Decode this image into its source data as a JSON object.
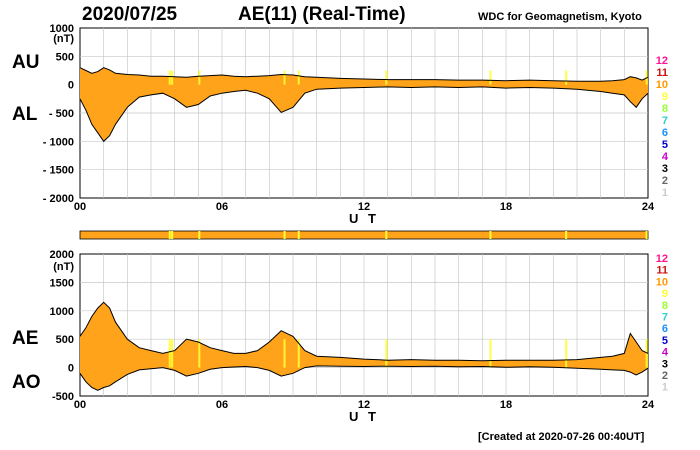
{
  "header": {
    "date": "2020/07/25",
    "title": "AE(11) (Real-Time)",
    "source": "WDC for Geomagnetism, Kyoto",
    "created": "[Created at 2020-07-26 00:40UT]"
  },
  "legend": {
    "entries": [
      "12",
      "11",
      "10",
      "9",
      "8",
      "7",
      "6",
      "5",
      "4",
      "3",
      "2",
      "1"
    ],
    "colors": [
      "#ff1493",
      "#cc1111",
      "#ff9900",
      "#ffff33",
      "#99ff33",
      "#33cccc",
      "#1e90ff",
      "#0000cc",
      "#cc00cc",
      "#000000",
      "#666666",
      "#cccccc"
    ]
  },
  "colors": {
    "fill": "#ffa31a",
    "line": "#000000",
    "highlight": "#ffff33",
    "grid": "#c8c8c8"
  },
  "chart_data": [
    {
      "type": "area",
      "series_labels": [
        "AU",
        "AL"
      ],
      "unit": "(nT)",
      "xlabel": "U T",
      "xticks": [
        0,
        6,
        12,
        18,
        24
      ],
      "xticklabels": [
        "00",
        "06",
        "12",
        "18",
        "24"
      ],
      "yticks": [
        1000,
        500,
        0,
        -500,
        -1000,
        -1500,
        -2000
      ],
      "yticklabels": [
        "1000",
        "500",
        "0",
        "- 500",
        "- 1000",
        "- 1500",
        "- 2000"
      ],
      "xlim": [
        0,
        24
      ],
      "ylim": [
        -2000,
        1000
      ],
      "grid": true,
      "series": [
        {
          "name": "AU",
          "x": [
            0,
            0.25,
            0.5,
            0.75,
            1,
            1.25,
            1.5,
            2,
            2.5,
            3,
            3.5,
            4,
            4.5,
            5,
            5.5,
            6,
            6.5,
            7,
            7.5,
            8,
            8.5,
            9,
            9.5,
            10,
            11,
            12,
            13,
            14,
            15,
            16,
            17,
            18,
            19,
            20,
            21,
            22,
            22.5,
            23,
            23.25,
            23.5,
            23.75,
            24
          ],
          "values": [
            300,
            250,
            200,
            230,
            300,
            260,
            200,
            180,
            170,
            150,
            150,
            140,
            130,
            150,
            160,
            170,
            150,
            140,
            150,
            160,
            180,
            170,
            140,
            130,
            110,
            100,
            90,
            90,
            90,
            80,
            80,
            70,
            80,
            70,
            60,
            60,
            70,
            90,
            140,
            120,
            80,
            130
          ]
        },
        {
          "name": "AL",
          "x": [
            0,
            0.25,
            0.5,
            0.75,
            1,
            1.25,
            1.5,
            2,
            2.5,
            3,
            3.5,
            4,
            4.5,
            5,
            5.5,
            6,
            6.5,
            7,
            7.5,
            8,
            8.5,
            9,
            9.5,
            10,
            11,
            12,
            13,
            14,
            15,
            16,
            17,
            18,
            19,
            20,
            21,
            22,
            22.5,
            23,
            23.25,
            23.5,
            23.75,
            24
          ],
          "values": [
            -250,
            -450,
            -700,
            -850,
            -1000,
            -900,
            -700,
            -400,
            -220,
            -180,
            -150,
            -250,
            -400,
            -350,
            -200,
            -150,
            -120,
            -100,
            -150,
            -250,
            -490,
            -400,
            -150,
            -80,
            -60,
            -50,
            -40,
            -50,
            -40,
            -50,
            -40,
            -60,
            -50,
            -60,
            -80,
            -120,
            -150,
            -180,
            -300,
            -400,
            -250,
            -150
          ]
        }
      ]
    },
    {
      "type": "area",
      "series_labels": [
        "AE",
        "AO"
      ],
      "unit": "(nT)",
      "xlabel": "U T",
      "xticks": [
        0,
        6,
        12,
        18,
        24
      ],
      "xticklabels": [
        "00",
        "06",
        "12",
        "18",
        "24"
      ],
      "yticks": [
        2000,
        1500,
        1000,
        500,
        0,
        -500
      ],
      "yticklabels": [
        "2000",
        "1500",
        "1000",
        "500",
        "0",
        "-500"
      ],
      "xlim": [
        0,
        24
      ],
      "ylim": [
        -500,
        2000
      ],
      "grid": true,
      "series": [
        {
          "name": "AE",
          "x": [
            0,
            0.25,
            0.5,
            0.75,
            1,
            1.25,
            1.5,
            2,
            2.5,
            3,
            3.5,
            4,
            4.5,
            5,
            5.5,
            6,
            6.5,
            7,
            7.5,
            8,
            8.5,
            9,
            9.5,
            10,
            11,
            12,
            13,
            14,
            15,
            16,
            17,
            18,
            19,
            20,
            21,
            22,
            22.5,
            23,
            23.25,
            23.5,
            23.75,
            24
          ],
          "values": [
            550,
            700,
            900,
            1050,
            1150,
            1050,
            800,
            500,
            350,
            300,
            250,
            300,
            500,
            450,
            350,
            300,
            250,
            250,
            300,
            450,
            650,
            550,
            300,
            200,
            180,
            150,
            130,
            140,
            130,
            130,
            120,
            130,
            130,
            130,
            140,
            180,
            200,
            250,
            600,
            450,
            300,
            250
          ]
        },
        {
          "name": "AO",
          "x": [
            0,
            0.25,
            0.5,
            0.75,
            1,
            1.25,
            1.5,
            2,
            2.5,
            3,
            3.5,
            4,
            4.5,
            5,
            5.5,
            6,
            6.5,
            7,
            7.5,
            8,
            8.5,
            9,
            9.5,
            10,
            11,
            12,
            13,
            14,
            15,
            16,
            17,
            18,
            19,
            20,
            21,
            22,
            22.5,
            23,
            23.25,
            23.5,
            23.75,
            24
          ],
          "values": [
            -100,
            -250,
            -350,
            -400,
            -350,
            -320,
            -250,
            -120,
            -40,
            -20,
            0,
            -50,
            -150,
            -100,
            -30,
            0,
            10,
            20,
            0,
            -50,
            -150,
            -100,
            0,
            30,
            25,
            20,
            25,
            20,
            25,
            15,
            20,
            5,
            15,
            5,
            -10,
            -30,
            -40,
            -50,
            -80,
            -130,
            -80,
            -10
          ]
        }
      ]
    }
  ]
}
